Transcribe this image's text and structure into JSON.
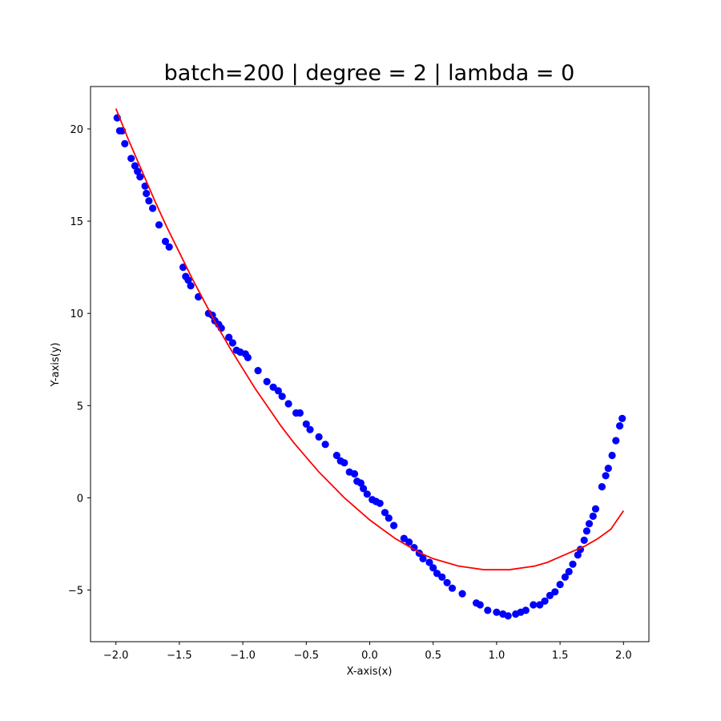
{
  "chart_data": {
    "type": "scatter",
    "title": "batch=200 | degree = 2 | lambda = 0",
    "xlabel": "X-axis(x)",
    "ylabel": "Y-axis(y)",
    "xlim": [
      -2.2,
      2.2
    ],
    "ylim": [
      -7.8,
      22.3
    ],
    "grid": false,
    "xticks": [
      -2.0,
      -1.5,
      -1.0,
      -0.5,
      0.0,
      0.5,
      1.0,
      1.5,
      2.0
    ],
    "xtick_labels": [
      "−2.0",
      "−1.5",
      "−1.0",
      "−0.5",
      "0.0",
      "0.5",
      "1.0",
      "1.5",
      "2.0"
    ],
    "yticks": [
      -5,
      0,
      5,
      10,
      15,
      20
    ],
    "ytick_labels": [
      "−5",
      "0",
      "5",
      "10",
      "15",
      "20"
    ],
    "series": [
      {
        "kind": "scatter",
        "color": "#0000ff",
        "points": [
          [
            -1.99,
            20.6
          ],
          [
            -1.97,
            19.9
          ],
          [
            -1.95,
            19.9
          ],
          [
            -1.93,
            19.2
          ],
          [
            -1.88,
            18.4
          ],
          [
            -1.85,
            18.0
          ],
          [
            -1.83,
            17.7
          ],
          [
            -1.81,
            17.4
          ],
          [
            -1.77,
            16.9
          ],
          [
            -1.76,
            16.5
          ],
          [
            -1.74,
            16.1
          ],
          [
            -1.71,
            15.7
          ],
          [
            -1.66,
            14.8
          ],
          [
            -1.61,
            13.9
          ],
          [
            -1.58,
            13.6
          ],
          [
            -1.47,
            12.5
          ],
          [
            -1.45,
            12.0
          ],
          [
            -1.43,
            11.8
          ],
          [
            -1.41,
            11.5
          ],
          [
            -1.35,
            10.9
          ],
          [
            -1.27,
            10.0
          ],
          [
            -1.24,
            9.9
          ],
          [
            -1.22,
            9.6
          ],
          [
            -1.19,
            9.4
          ],
          [
            -1.17,
            9.2
          ],
          [
            -1.11,
            8.7
          ],
          [
            -1.08,
            8.4
          ],
          [
            -1.05,
            8.0
          ],
          [
            -1.02,
            7.9
          ],
          [
            -0.98,
            7.8
          ],
          [
            -0.96,
            7.6
          ],
          [
            -0.88,
            6.9
          ],
          [
            -0.81,
            6.3
          ],
          [
            -0.76,
            6.0
          ],
          [
            -0.72,
            5.8
          ],
          [
            -0.69,
            5.5
          ],
          [
            -0.64,
            5.1
          ],
          [
            -0.58,
            4.6
          ],
          [
            -0.55,
            4.6
          ],
          [
            -0.5,
            4.0
          ],
          [
            -0.47,
            3.7
          ],
          [
            -0.4,
            3.3
          ],
          [
            -0.35,
            2.9
          ],
          [
            -0.26,
            2.3
          ],
          [
            -0.23,
            2.0
          ],
          [
            -0.2,
            1.9
          ],
          [
            -0.16,
            1.4
          ],
          [
            -0.12,
            1.3
          ],
          [
            -0.1,
            0.9
          ],
          [
            -0.07,
            0.8
          ],
          [
            -0.05,
            0.5
          ],
          [
            -0.02,
            0.2
          ],
          [
            0.02,
            -0.1
          ],
          [
            0.05,
            -0.2
          ],
          [
            0.08,
            -0.3
          ],
          [
            0.12,
            -0.8
          ],
          [
            0.15,
            -1.1
          ],
          [
            0.19,
            -1.5
          ],
          [
            0.27,
            -2.2
          ],
          [
            0.31,
            -2.4
          ],
          [
            0.35,
            -2.7
          ],
          [
            0.39,
            -3.0
          ],
          [
            0.42,
            -3.3
          ],
          [
            0.47,
            -3.5
          ],
          [
            0.5,
            -3.8
          ],
          [
            0.53,
            -4.1
          ],
          [
            0.57,
            -4.3
          ],
          [
            0.61,
            -4.6
          ],
          [
            0.65,
            -4.9
          ],
          [
            0.73,
            -5.2
          ],
          [
            0.84,
            -5.7
          ],
          [
            0.87,
            -5.8
          ],
          [
            0.93,
            -6.1
          ],
          [
            1.0,
            -6.2
          ],
          [
            1.05,
            -6.3
          ],
          [
            1.09,
            -6.4
          ],
          [
            1.15,
            -6.3
          ],
          [
            1.19,
            -6.2
          ],
          [
            1.23,
            -6.1
          ],
          [
            1.29,
            -5.8
          ],
          [
            1.34,
            -5.8
          ],
          [
            1.38,
            -5.6
          ],
          [
            1.42,
            -5.3
          ],
          [
            1.46,
            -5.1
          ],
          [
            1.5,
            -4.7
          ],
          [
            1.54,
            -4.3
          ],
          [
            1.57,
            -4.0
          ],
          [
            1.6,
            -3.6
          ],
          [
            1.64,
            -3.1
          ],
          [
            1.66,
            -2.8
          ],
          [
            1.69,
            -2.3
          ],
          [
            1.71,
            -1.8
          ],
          [
            1.73,
            -1.4
          ],
          [
            1.76,
            -1.0
          ],
          [
            1.78,
            -0.6
          ],
          [
            1.83,
            0.6
          ],
          [
            1.86,
            1.2
          ],
          [
            1.88,
            1.6
          ],
          [
            1.91,
            2.3
          ],
          [
            1.94,
            3.1
          ],
          [
            1.97,
            3.9
          ],
          [
            1.99,
            4.3
          ]
        ]
      },
      {
        "kind": "line",
        "color": "#ff0000",
        "x": [
          -2.0,
          -1.9,
          -1.8,
          -1.7,
          -1.6,
          -1.5,
          -1.4,
          -1.3,
          -1.2,
          -1.1,
          -1.0,
          -0.9,
          -0.8,
          -0.7,
          -0.6,
          -0.5,
          -0.4,
          -0.3,
          -0.2,
          -0.1,
          0.0,
          0.1,
          0.2,
          0.3,
          0.4,
          0.5,
          0.6,
          0.7,
          0.8,
          0.9,
          1.0,
          1.1,
          1.2,
          1.3,
          1.4,
          1.5,
          1.6,
          1.7,
          1.8,
          1.9,
          2.0
        ],
        "y": [
          21.1,
          19.4,
          17.8,
          16.2,
          14.7,
          13.3,
          11.9,
          10.6,
          9.3,
          8.1,
          7.0,
          5.9,
          4.9,
          3.9,
          3.0,
          2.2,
          1.4,
          0.7,
          0.0,
          -0.6,
          -1.2,
          -1.7,
          -2.2,
          -2.6,
          -3.0,
          -3.3,
          -3.5,
          -3.7,
          -3.8,
          -3.9,
          -3.9,
          -3.9,
          -3.8,
          -3.7,
          -3.5,
          -3.2,
          -2.9,
          -2.6,
          -2.2,
          -1.7,
          -0.7
        ]
      }
    ]
  }
}
